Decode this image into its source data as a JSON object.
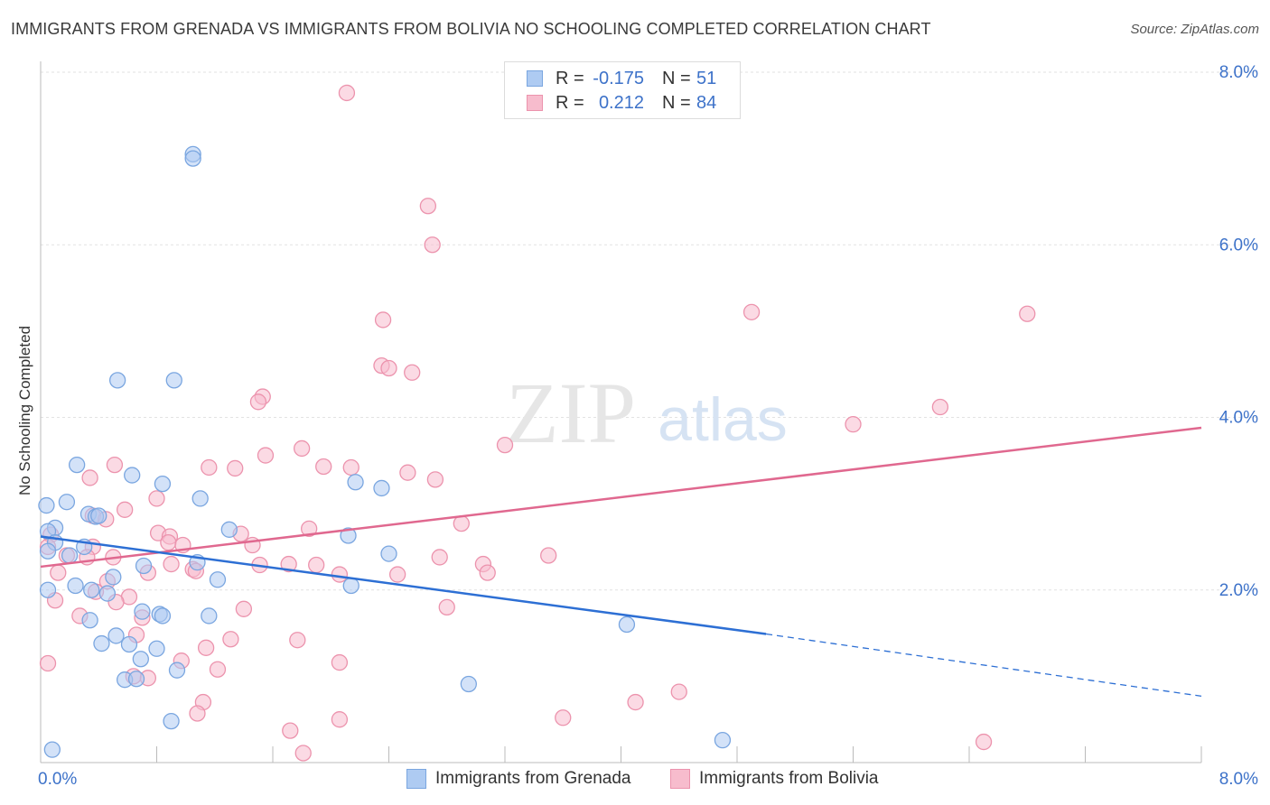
{
  "title": "IMMIGRANTS FROM GRENADA VS IMMIGRANTS FROM BOLIVIA NO SCHOOLING COMPLETED CORRELATION CHART",
  "source": "Source: ZipAtlas.com",
  "watermark": {
    "zip": "ZIP",
    "atlas": "atlas"
  },
  "legend": {
    "r_label": "R =",
    "n_label": "N =",
    "grenada": {
      "r": "-0.175",
      "n": "51"
    },
    "bolivia": {
      "r": "0.212",
      "n": "84"
    }
  },
  "colors": {
    "grenada_fill": "#aecbf2",
    "grenada_stroke": "#7aa6e0",
    "grenada_line": "#2d6fd4",
    "bolivia_fill": "#f7bccd",
    "bolivia_stroke": "#ec93ad",
    "bolivia_line": "#e0688f",
    "tick_text": "#3d72c9"
  },
  "chart_data": {
    "type": "scatter",
    "title": "IMMIGRANTS FROM GRENADA VS IMMIGRANTS FROM BOLIVIA NO SCHOOLING COMPLETED CORRELATION CHART",
    "xlabel": "",
    "ylabel": "No Schooling Completed",
    "xlim": [
      0,
      8
    ],
    "ylim": [
      0,
      8
    ],
    "x_tick_labels": [
      "0.0%",
      "8.0%"
    ],
    "y_ticks": [
      2,
      4,
      6,
      8
    ],
    "y_tick_labels": [
      "2.0%",
      "4.0%",
      "6.0%",
      "8.0%"
    ],
    "grid": true,
    "legend_position": "top-center",
    "series": [
      {
        "name": "Immigrants from Grenada",
        "r": -0.175,
        "n": 51,
        "trend": {
          "x0": 0.0,
          "y0": 2.62,
          "x1": 5.0,
          "y1": 1.49,
          "dashed_to_x": 8.0,
          "dashed_to_y": 0.77
        },
        "points": [
          [
            1.05,
            7.05
          ],
          [
            1.05,
            7.0
          ],
          [
            0.53,
            4.43
          ],
          [
            0.92,
            4.43
          ],
          [
            0.25,
            3.45
          ],
          [
            0.63,
            3.33
          ],
          [
            0.84,
            3.23
          ],
          [
            2.17,
            3.25
          ],
          [
            2.35,
            3.18
          ],
          [
            0.18,
            3.02
          ],
          [
            0.04,
            2.98
          ],
          [
            1.1,
            3.06
          ],
          [
            0.33,
            2.88
          ],
          [
            0.38,
            2.85
          ],
          [
            0.4,
            2.86
          ],
          [
            0.1,
            2.72
          ],
          [
            0.05,
            2.68
          ],
          [
            1.3,
            2.7
          ],
          [
            2.12,
            2.63
          ],
          [
            0.1,
            2.55
          ],
          [
            0.05,
            2.45
          ],
          [
            0.3,
            2.5
          ],
          [
            0.2,
            2.4
          ],
          [
            2.4,
            2.42
          ],
          [
            1.08,
            2.32
          ],
          [
            0.71,
            2.28
          ],
          [
            0.5,
            2.15
          ],
          [
            1.22,
            2.12
          ],
          [
            0.05,
            2.0
          ],
          [
            0.24,
            2.05
          ],
          [
            0.35,
            2.0
          ],
          [
            0.46,
            1.96
          ],
          [
            2.14,
            2.05
          ],
          [
            0.7,
            1.75
          ],
          [
            0.82,
            1.72
          ],
          [
            0.84,
            1.7
          ],
          [
            1.16,
            1.7
          ],
          [
            0.34,
            1.65
          ],
          [
            4.04,
            1.6
          ],
          [
            0.52,
            1.47
          ],
          [
            0.42,
            1.38
          ],
          [
            0.61,
            1.37
          ],
          [
            0.8,
            1.32
          ],
          [
            0.69,
            1.2
          ],
          [
            0.94,
            1.07
          ],
          [
            0.58,
            0.96
          ],
          [
            0.66,
            0.97
          ],
          [
            2.95,
            0.91
          ],
          [
            0.9,
            0.48
          ],
          [
            4.7,
            0.26
          ],
          [
            0.08,
            0.15
          ]
        ]
      },
      {
        "name": "Immigrants from Bolivia",
        "r": 0.212,
        "n": 84,
        "trend": {
          "x0": 0.0,
          "y0": 2.27,
          "x1": 8.0,
          "y1": 3.88
        },
        "points": [
          [
            2.11,
            7.76
          ],
          [
            2.67,
            6.45
          ],
          [
            2.7,
            6.0
          ],
          [
            4.9,
            5.22
          ],
          [
            6.8,
            5.2
          ],
          [
            2.36,
            5.13
          ],
          [
            2.35,
            4.6
          ],
          [
            2.4,
            4.57
          ],
          [
            2.56,
            4.52
          ],
          [
            1.53,
            4.24
          ],
          [
            1.5,
            4.18
          ],
          [
            6.2,
            4.12
          ],
          [
            5.6,
            3.92
          ],
          [
            3.2,
            3.68
          ],
          [
            1.8,
            3.64
          ],
          [
            1.55,
            3.56
          ],
          [
            0.51,
            3.45
          ],
          [
            1.16,
            3.42
          ],
          [
            1.34,
            3.41
          ],
          [
            1.95,
            3.43
          ],
          [
            2.14,
            3.42
          ],
          [
            2.53,
            3.36
          ],
          [
            2.72,
            3.28
          ],
          [
            0.34,
            3.3
          ],
          [
            0.8,
            3.06
          ],
          [
            0.58,
            2.93
          ],
          [
            0.36,
            2.86
          ],
          [
            0.45,
            2.82
          ],
          [
            2.9,
            2.77
          ],
          [
            1.85,
            2.71
          ],
          [
            0.07,
            2.64
          ],
          [
            0.81,
            2.66
          ],
          [
            0.89,
            2.62
          ],
          [
            1.38,
            2.65
          ],
          [
            0.88,
            2.55
          ],
          [
            0.98,
            2.52
          ],
          [
            1.46,
            2.52
          ],
          [
            0.05,
            2.5
          ],
          [
            0.36,
            2.5
          ],
          [
            0.18,
            2.4
          ],
          [
            0.32,
            2.38
          ],
          [
            0.5,
            2.38
          ],
          [
            2.75,
            2.38
          ],
          [
            3.5,
            2.4
          ],
          [
            1.71,
            2.3
          ],
          [
            1.51,
            2.29
          ],
          [
            1.9,
            2.29
          ],
          [
            3.05,
            2.3
          ],
          [
            0.9,
            2.3
          ],
          [
            1.05,
            2.24
          ],
          [
            1.07,
            2.22
          ],
          [
            0.12,
            2.2
          ],
          [
            0.74,
            2.2
          ],
          [
            2.06,
            2.18
          ],
          [
            3.08,
            2.2
          ],
          [
            2.46,
            2.18
          ],
          [
            0.46,
            2.1
          ],
          [
            0.38,
            1.98
          ],
          [
            0.61,
            1.92
          ],
          [
            0.52,
            1.86
          ],
          [
            0.1,
            1.88
          ],
          [
            2.8,
            1.8
          ],
          [
            1.4,
            1.78
          ],
          [
            0.27,
            1.7
          ],
          [
            0.7,
            1.68
          ],
          [
            0.66,
            1.48
          ],
          [
            1.31,
            1.43
          ],
          [
            1.77,
            1.42
          ],
          [
            1.14,
            1.33
          ],
          [
            0.97,
            1.18
          ],
          [
            2.06,
            1.16
          ],
          [
            0.05,
            1.15
          ],
          [
            1.22,
            1.08
          ],
          [
            0.64,
            1.0
          ],
          [
            0.74,
            0.98
          ],
          [
            4.4,
            0.82
          ],
          [
            1.12,
            0.7
          ],
          [
            4.1,
            0.7
          ],
          [
            1.08,
            0.57
          ],
          [
            3.6,
            0.52
          ],
          [
            2.06,
            0.5
          ],
          [
            1.72,
            0.37
          ],
          [
            6.5,
            0.24
          ],
          [
            1.81,
            0.11
          ]
        ]
      }
    ]
  }
}
